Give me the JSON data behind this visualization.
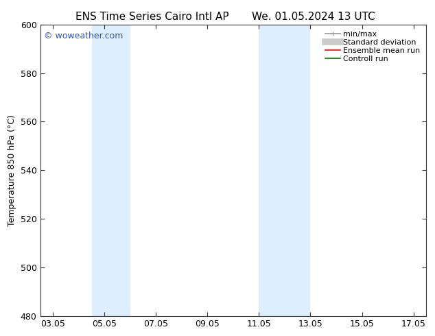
{
  "title_left": "ENS Time Series Cairo Intl AP",
  "title_right": "We. 01.05.2024 13 UTC",
  "ylabel": "Temperature 850 hPa (°C)",
  "ylim": [
    480,
    600
  ],
  "yticks": [
    480,
    500,
    520,
    540,
    560,
    580,
    600
  ],
  "xtick_labels": [
    "03.05",
    "05.05",
    "07.05",
    "09.05",
    "11.05",
    "13.05",
    "15.05",
    "17.05"
  ],
  "xtick_positions": [
    3,
    5,
    7,
    9,
    11,
    13,
    15,
    17
  ],
  "xlim": [
    2.5,
    17.5
  ],
  "shaded_bands": [
    {
      "x_start": 4.5,
      "x_end": 6.0,
      "color": "#ddeeff"
    },
    {
      "x_start": 11.0,
      "x_end": 13.0,
      "color": "#ddeeff"
    }
  ],
  "watermark_text": "© woweather.com",
  "watermark_color": "#3355bb",
  "background_color": "#ffffff",
  "plot_bg_color": "#ffffff",
  "legend_items": [
    {
      "label": "min/max",
      "color": "#999999",
      "lw": 1.2,
      "ls": "-",
      "style": "minmax"
    },
    {
      "label": "Standard deviation",
      "color": "#cccccc",
      "lw": 7,
      "ls": "-",
      "style": "band"
    },
    {
      "label": "Ensemble mean run",
      "color": "#ff0000",
      "lw": 1.2,
      "ls": "-",
      "style": "line"
    },
    {
      "label": "Controll run",
      "color": "#007700",
      "lw": 1.2,
      "ls": "-",
      "style": "line"
    }
  ],
  "title_fontsize": 11,
  "axis_fontsize": 9,
  "tick_fontsize": 9,
  "watermark_fontsize": 9,
  "legend_fontsize": 8
}
